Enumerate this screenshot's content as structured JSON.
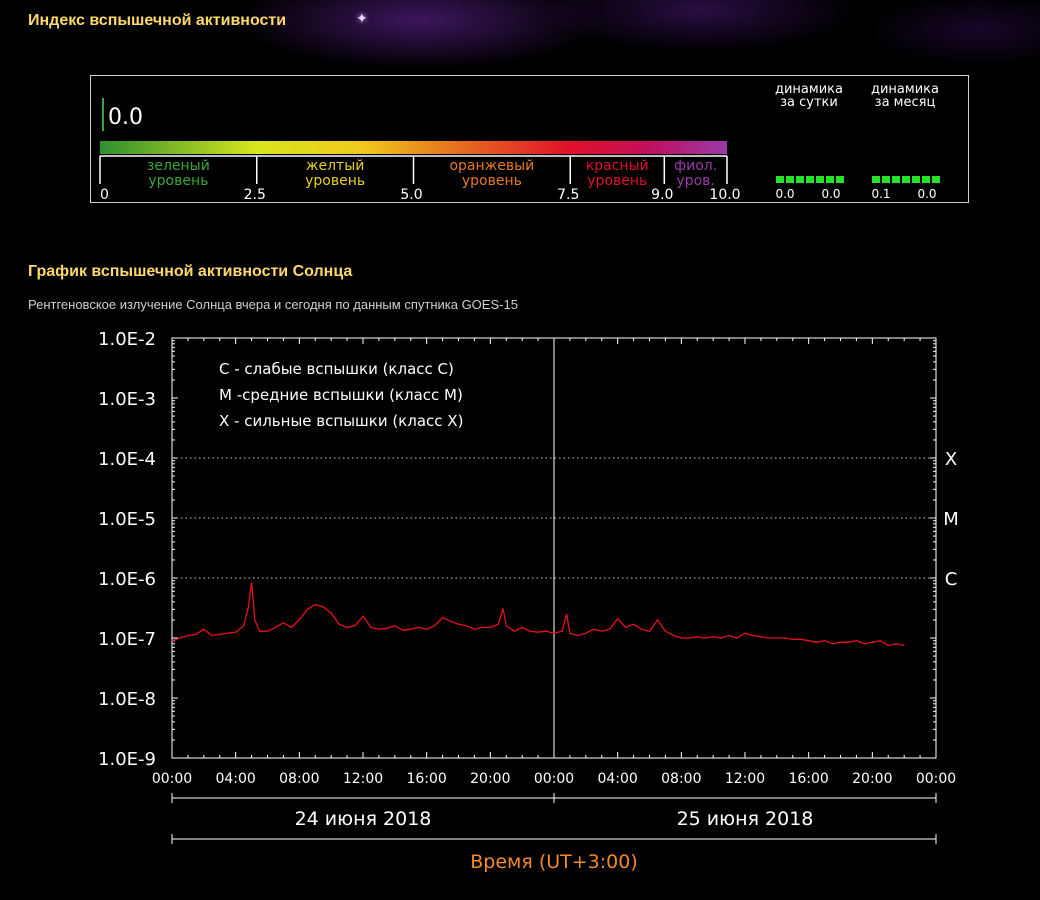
{
  "index_section": {
    "title": "Индекс вспышечной активности",
    "current_value": "0.0",
    "levels": [
      {
        "label": "зеленый уровень",
        "color": "#3aa63a"
      },
      {
        "label": "желтый уровень",
        "color": "#e6d11c"
      },
      {
        "label": "оранжевый уровень",
        "color": "#e67a1e"
      },
      {
        "label": "красный уровень",
        "color": "#e0102a"
      },
      {
        "label": "фиол. уров.",
        "color": "#9a3aa8"
      }
    ],
    "scale_ticks": [
      "0",
      "2.5",
      "5.0",
      "7.5",
      "9.0",
      "10.0"
    ],
    "dynamics": [
      {
        "label": "динамика за сутки",
        "values": [
          "0.0",
          "0.0"
        ]
      },
      {
        "label": "динамика за месяц",
        "values": [
          "0.1",
          "0.0"
        ]
      }
    ]
  },
  "chart_section": {
    "title": "График вспышечной активности Солнца",
    "subtitle": "Рентгеновское излучение Солнца вчера и сегодня по данным спутника GOES-15"
  },
  "chart_data": {
    "type": "line",
    "y_scale": "log",
    "ylim": [
      1e-09,
      0.01
    ],
    "y_tick_labels": [
      "1.0E-2",
      "1.0E-3",
      "1.0E-4",
      "1.0E-5",
      "1.0E-6",
      "1.0E-7",
      "1.0E-8",
      "1.0E-9"
    ],
    "xlim_hours": [
      0,
      48
    ],
    "x_tick_labels": [
      "00:00",
      "04:00",
      "08:00",
      "12:00",
      "16:00",
      "20:00",
      "00:00",
      "04:00",
      "08:00",
      "12:00",
      "16:00",
      "20:00",
      "00:00"
    ],
    "xlabel": "Время (UT+3:00)",
    "date_labels": [
      "24 июня 2018",
      "25 июня 2018"
    ],
    "legend": [
      "C - слабые вспышки (класс C)",
      "M -средние вспышки (класс M)",
      "X - сильные вспышки (класс X)"
    ],
    "class_thresholds": [
      {
        "label": "X",
        "value": 0.0001
      },
      {
        "label": "M",
        "value": 1e-05
      },
      {
        "label": "C",
        "value": 1e-06
      }
    ],
    "grid": "dotted horizontal at class thresholds",
    "series": [
      {
        "color": "#e8101c",
        "x": [
          0,
          0.5,
          1,
          1.5,
          2,
          2.5,
          3,
          3.5,
          4,
          4.5,
          4.8,
          5,
          5.2,
          5.5,
          6,
          6.5,
          7,
          7.5,
          8,
          8.5,
          9,
          9.5,
          10,
          10.5,
          11,
          11.5,
          12,
          12.5,
          13,
          13.5,
          14,
          14.5,
          15,
          15.5,
          16,
          16.5,
          17,
          17.5,
          18,
          18.5,
          19,
          19.5,
          20,
          20.5,
          20.8,
          21,
          21.5,
          22,
          22.5,
          23,
          23.5,
          24,
          24.5,
          24.8,
          25,
          25.5,
          26,
          26.5,
          27,
          27.5,
          28,
          28.5,
          29,
          29.5,
          30,
          30.5,
          31,
          31.5,
          32,
          32.5,
          33,
          33.5,
          34,
          34.5,
          35,
          35.5,
          36,
          36.5,
          37,
          37.5,
          38,
          38.5,
          39,
          39.5,
          40,
          40.5,
          41,
          41.5,
          42,
          42.5,
          43,
          43.5,
          44,
          44.5,
          45,
          45.5,
          46
        ],
        "y": [
          9e-08,
          1e-07,
          1.1e-07,
          1.15e-07,
          1.4e-07,
          1.1e-07,
          1.15e-07,
          1.2e-07,
          1.25e-07,
          1.6e-07,
          3.3e-07,
          8.5e-07,
          2e-07,
          1.3e-07,
          1.3e-07,
          1.5e-07,
          1.8e-07,
          1.5e-07,
          2e-07,
          3e-07,
          3.6e-07,
          3.3e-07,
          2.6e-07,
          1.7e-07,
          1.5e-07,
          1.6e-07,
          2.3e-07,
          1.5e-07,
          1.4e-07,
          1.45e-07,
          1.6e-07,
          1.35e-07,
          1.4e-07,
          1.5e-07,
          1.4e-07,
          1.6e-07,
          2.2e-07,
          1.9e-07,
          1.7e-07,
          1.6e-07,
          1.4e-07,
          1.5e-07,
          1.5e-07,
          1.7e-07,
          3.1e-07,
          1.6e-07,
          1.3e-07,
          1.5e-07,
          1.3e-07,
          1.25e-07,
          1.3e-07,
          1.2e-07,
          1.3e-07,
          2.5e-07,
          1.2e-07,
          1.1e-07,
          1.2e-07,
          1.4e-07,
          1.3e-07,
          1.4e-07,
          2.1e-07,
          1.5e-07,
          1.7e-07,
          1.4e-07,
          1.3e-07,
          2e-07,
          1.3e-07,
          1.1e-07,
          1e-07,
          1e-07,
          1.05e-07,
          1e-07,
          1.05e-07,
          1e-07,
          1.1e-07,
          1e-07,
          1.2e-07,
          1.1e-07,
          1.05e-07,
          1e-07,
          1e-07,
          1e-07,
          9.5e-08,
          9.5e-08,
          9e-08,
          8.5e-08,
          9e-08,
          8e-08,
          8.5e-08,
          8.5e-08,
          9e-08,
          8e-08,
          8.5e-08,
          9e-08,
          7.5e-08,
          8e-08,
          7.5e-08
        ]
      }
    ]
  }
}
